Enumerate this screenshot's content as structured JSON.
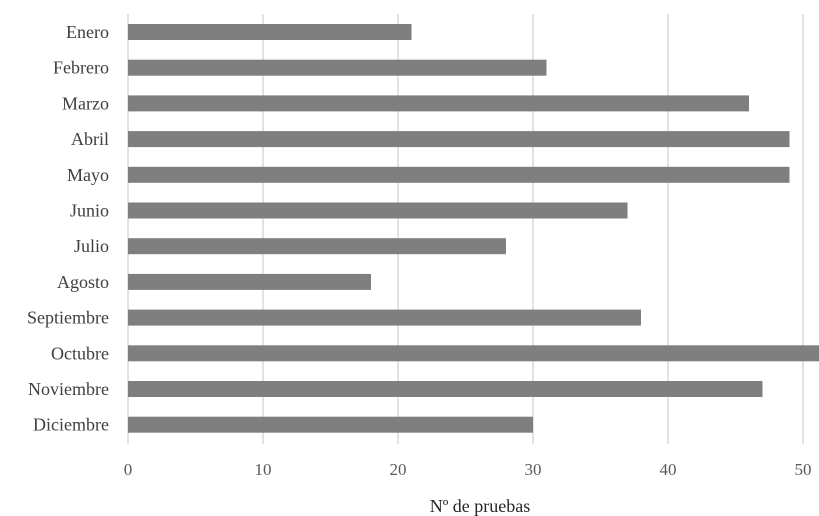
{
  "chart_data": {
    "type": "bar",
    "orientation": "horizontal",
    "categories": [
      "Enero",
      "Febrero",
      "Marzo",
      "Abril",
      "Mayo",
      "Junio",
      "Julio",
      "Agosto",
      "Septiembre",
      "Octubre",
      "Noviembre",
      "Diciembre"
    ],
    "values": [
      21,
      31,
      46,
      49,
      49,
      37,
      28,
      18,
      38,
      52,
      47,
      30
    ],
    "title": "",
    "xlabel": "Nº de pruebas",
    "ylabel": "",
    "xlim": [
      0,
      50
    ],
    "xticks": [
      0,
      10,
      20,
      30,
      40,
      50
    ],
    "grid": true,
    "legend": "none",
    "colors": {
      "bar": "#7f7f7f",
      "grid": "#d9d9d9"
    }
  }
}
